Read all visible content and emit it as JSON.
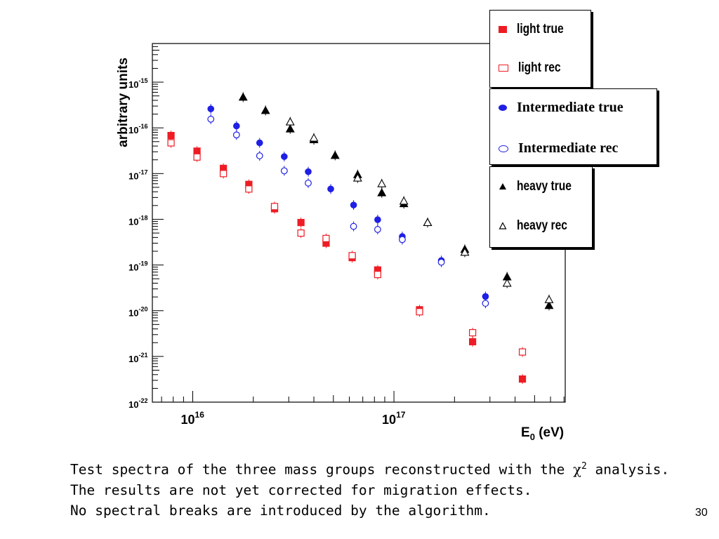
{
  "slide_number": "30",
  "caption": {
    "line1_prefix": "Test spectra of the three mass groups reconstructed with the ",
    "chi_symbol": "χ",
    "chi_exponent": "2",
    "line1_suffix": " analysis.",
    "line2": "The results are not yet corrected for migration effects.",
    "line3": "No spectral breaks are introduced by the algorithm."
  },
  "colors": {
    "red": "#ee1c24",
    "blue": "#1f1fe6",
    "black": "#000000"
  },
  "chart_data": {
    "type": "scatter",
    "xlabel": "E",
    "xlabel_sub": "0",
    "xlabel_unit": " (eV)",
    "ylabel": "arbitrary units",
    "x_scale": "log",
    "y_scale": "log",
    "xlim": [
      6300000000000000.0,
      7.1e+17
    ],
    "ylim": [
      1e-22,
      7e-15
    ],
    "x_tick_labels": [
      {
        "value": 1e+16,
        "base": "10",
        "exp": "16"
      },
      {
        "value": 1e+17,
        "base": "10",
        "exp": "17"
      }
    ],
    "y_tick_labels": [
      {
        "value": 1e-15,
        "base": "10",
        "exp": "-15"
      },
      {
        "value": 1e-16,
        "base": "10",
        "exp": "-16"
      },
      {
        "value": 1e-17,
        "base": "10",
        "exp": "-17"
      },
      {
        "value": 1e-18,
        "base": "10",
        "exp": "-18"
      },
      {
        "value": 1e-19,
        "base": "10",
        "exp": "-19"
      },
      {
        "value": 1e-20,
        "base": "10",
        "exp": "-20"
      },
      {
        "value": 1e-21,
        "base": "10",
        "exp": "-21"
      },
      {
        "value": 1e-22,
        "base": "10",
        "exp": "-22"
      }
    ],
    "legend": [
      {
        "label": "light true"
      },
      {
        "label": "light rec"
      },
      {
        "label": "Intermediate true"
      },
      {
        "label": "Intermediate rec"
      },
      {
        "label": "heavy true"
      },
      {
        "label": "heavy rec"
      }
    ],
    "series": [
      {
        "name": "light true",
        "marker": "square",
        "filled": true,
        "color": "#ee1c24",
        "x": [
          7800000000000000.0,
          1.05e+16,
          1.42e+16,
          1.9e+16,
          2.55e+16,
          3.45e+16,
          4.6e+16,
          6.2e+16,
          8.3e+16,
          1.34e+17,
          2.46e+17,
          4.35e+17
        ],
        "y": [
          6.8e-17,
          3.1e-17,
          1.3e-17,
          5.8e-18,
          1.7e-18,
          8.5e-19,
          3e-19,
          1.45e-19,
          7.8e-20,
          1.05e-20,
          2.1e-21,
          3.2e-22
        ]
      },
      {
        "name": "light rec",
        "marker": "square",
        "filled": false,
        "color": "#ee1c24",
        "x": [
          7800000000000000.0,
          1.05e+16,
          1.42e+16,
          1.9e+16,
          2.55e+16,
          3.45e+16,
          4.6e+16,
          6.2e+16,
          8.3e+16,
          1.34e+17,
          2.46e+17,
          4.35e+17
        ],
        "y": [
          4.7e-17,
          2.3e-17,
          1e-17,
          4.6e-18,
          1.9e-18,
          5e-19,
          3.8e-19,
          1.6e-19,
          6.2e-20,
          9.5e-21,
          3.3e-21,
          1.25e-21
        ]
      },
      {
        "name": "Intermediate true",
        "marker": "circle",
        "filled": true,
        "color": "#1f1fe6",
        "x": [
          1.23e+16,
          1.65e+16,
          2.15e+16,
          2.85e+16,
          3.75e+16,
          4.85e+16,
          6.3e+16,
          8.3e+16,
          1.1e+17,
          1.72e+17,
          2.85e+17
        ],
        "y": [
          2.6e-16,
          1.1e-16,
          4.7e-17,
          2.35e-17,
          1.1e-17,
          4.6e-18,
          2.05e-18,
          9.8e-19,
          4.2e-19,
          1.25e-19,
          2.05e-20
        ]
      },
      {
        "name": "Intermediate rec",
        "marker": "circle",
        "filled": false,
        "color": "#1f1fe6",
        "x": [
          1.23e+16,
          1.65e+16,
          2.15e+16,
          2.85e+16,
          3.75e+16,
          6.3e+16,
          8.3e+16,
          1.1e+17,
          1.72e+17,
          2.85e+17
        ],
        "y": [
          1.55e-16,
          7e-17,
          2.45e-17,
          1.15e-17,
          6.2e-18,
          7e-19,
          6e-19,
          3.6e-19,
          1.15e-19,
          1.45e-20
        ]
      },
      {
        "name": "heavy true",
        "marker": "triangle",
        "filled": true,
        "color": "#000000",
        "x": [
          1.78e+16,
          2.3e+16,
          3.05e+16,
          4e+16,
          5.1e+16,
          6.6e+16,
          8.7e+16,
          1.12e+17,
          1.47e+17,
          2.25e+17,
          3.65e+17,
          5.9e+17
        ],
        "y": [
          4.7e-16,
          2.4e-16,
          9.5e-17,
          5.5e-17,
          2.5e-17,
          9.5e-18,
          3.8e-18,
          2.2e-18,
          8.5e-19,
          2.2e-19,
          5.5e-20,
          1.3e-20
        ]
      },
      {
        "name": "heavy rec",
        "marker": "triangle",
        "filled": false,
        "color": "#000000",
        "x": [
          3.05e+16,
          4e+16,
          6.6e+16,
          8.7e+16,
          1.12e+17,
          1.47e+17,
          2.25e+17,
          3.65e+17,
          5.9e+17
        ],
        "y": [
          1.35e-16,
          6e-17,
          8e-18,
          6e-18,
          2.5e-18,
          8.5e-19,
          1.9e-19,
          4e-20,
          1.75e-20
        ]
      }
    ]
  }
}
